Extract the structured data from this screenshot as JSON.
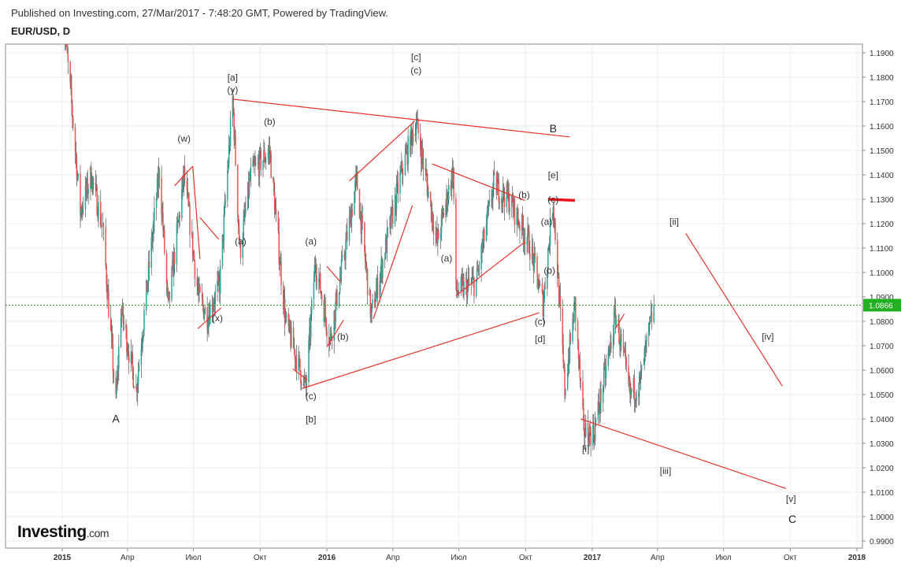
{
  "header": {
    "published": "Published on Investing.com, 27/Mar/2017 - 7:48:20 GMT, Powered by TradingView.",
    "symbol": "EUR/USD, D"
  },
  "logo": {
    "name": "Investing",
    "suffix": ".com"
  },
  "colors": {
    "up": "#26a69a",
    "down": "#ef5350",
    "trendline": "#e8332b",
    "price_line": "#22b022",
    "wick": "#555555"
  },
  "chart_data": {
    "type": "candlestick",
    "title": "EUR/USD, D",
    "current_price": 1.0866,
    "current_price_label": "1.0866",
    "y_ticks": [
      "1.1900",
      "1.1800",
      "1.1700",
      "1.1600",
      "1.1500",
      "1.1400",
      "1.1300",
      "1.1200",
      "1.1100",
      "1.1000",
      "1.0900",
      "1.0800",
      "1.0700",
      "1.0600",
      "1.0500",
      "1.0400",
      "1.0300",
      "1.0200",
      "1.0100",
      "1.0000",
      "0.9900"
    ],
    "ylim": [
      0.986,
      1.1925
    ],
    "x_ticks": [
      {
        "label": "2015",
        "date": "2015-01-01",
        "bold": true
      },
      {
        "label": "Апр",
        "date": "2015-04-01",
        "bold": false
      },
      {
        "label": "Июл",
        "date": "2015-07-01",
        "bold": false
      },
      {
        "label": "Окт",
        "date": "2015-10-01",
        "bold": false
      },
      {
        "label": "2016",
        "date": "2016-01-01",
        "bold": true
      },
      {
        "label": "Апр",
        "date": "2016-04-01",
        "bold": false
      },
      {
        "label": "Июл",
        "date": "2016-07-01",
        "bold": false
      },
      {
        "label": "Окт",
        "date": "2016-10-01",
        "bold": false
      },
      {
        "label": "2017",
        "date": "2017-01-01",
        "bold": true
      },
      {
        "label": "Апр",
        "date": "2017-04-01",
        "bold": false
      },
      {
        "label": "Июл",
        "date": "2017-07-01",
        "bold": false
      },
      {
        "label": "Окт",
        "date": "2017-10-01",
        "bold": false
      },
      {
        "label": "2018",
        "date": "2018-01-01",
        "bold": true
      }
    ],
    "grid": true,
    "price_path": [
      {
        "date": "2015-01-01",
        "price": 1.21
      },
      {
        "date": "2015-01-15",
        "price": 1.165
      },
      {
        "date": "2015-01-26",
        "price": 1.125
      },
      {
        "date": "2015-02-10",
        "price": 1.14
      },
      {
        "date": "2015-02-26",
        "price": 1.118
      },
      {
        "date": "2015-03-16",
        "price": 1.046
      },
      {
        "date": "2015-03-23",
        "price": 1.085
      },
      {
        "date": "2015-04-13",
        "price": 1.052
      },
      {
        "date": "2015-05-15",
        "price": 1.142
      },
      {
        "date": "2015-05-27",
        "price": 1.085
      },
      {
        "date": "2015-06-18",
        "price": 1.14
      },
      {
        "date": "2015-07-08",
        "price": 1.09
      },
      {
        "date": "2015-07-20",
        "price": 1.082
      },
      {
        "date": "2015-08-06",
        "price": 1.095
      },
      {
        "date": "2015-08-24",
        "price": 1.171
      },
      {
        "date": "2015-09-03",
        "price": 1.108
      },
      {
        "date": "2015-09-18",
        "price": 1.14
      },
      {
        "date": "2015-10-14",
        "price": 1.15
      },
      {
        "date": "2015-11-05",
        "price": 1.08
      },
      {
        "date": "2015-12-03",
        "price": 1.052
      },
      {
        "date": "2015-12-16",
        "price": 1.105
      },
      {
        "date": "2016-01-05",
        "price": 1.072
      },
      {
        "date": "2016-02-11",
        "price": 1.138
      },
      {
        "date": "2016-03-02",
        "price": 1.082
      },
      {
        "date": "2016-04-12",
        "price": 1.14
      },
      {
        "date": "2016-05-03",
        "price": 1.162
      },
      {
        "date": "2016-06-01",
        "price": 1.112
      },
      {
        "date": "2016-06-23",
        "price": 1.142
      },
      {
        "date": "2016-06-27",
        "price": 1.092
      },
      {
        "date": "2016-07-25",
        "price": 1.096
      },
      {
        "date": "2016-08-18",
        "price": 1.136
      },
      {
        "date": "2016-09-08",
        "price": 1.13
      },
      {
        "date": "2016-10-06",
        "price": 1.112
      },
      {
        "date": "2016-10-25",
        "price": 1.087
      },
      {
        "date": "2016-11-08",
        "price": 1.13
      },
      {
        "date": "2016-11-24",
        "price": 1.052
      },
      {
        "date": "2016-12-08",
        "price": 1.087
      },
      {
        "date": "2016-12-20",
        "price": 1.035
      },
      {
        "date": "2017-01-03",
        "price": 1.034
      },
      {
        "date": "2017-01-26",
        "price": 1.07
      },
      {
        "date": "2017-02-02",
        "price": 1.083
      },
      {
        "date": "2017-02-22",
        "price": 1.05
      },
      {
        "date": "2017-03-08",
        "price": 1.055
      },
      {
        "date": "2017-03-27",
        "price": 1.0866
      }
    ],
    "trendlines": [
      {
        "from": {
          "date": "2015-08-24",
          "price": 1.171
        },
        "to": {
          "date": "2016-12-01",
          "price": 1.1555
        }
      },
      {
        "from": {
          "date": "2015-11-28",
          "price": 1.0525
        },
        "to": {
          "date": "2016-10-20",
          "price": 1.0835
        }
      },
      {
        "from": {
          "date": "2016-02-01",
          "price": 1.1375
        },
        "to": {
          "date": "2016-05-01",
          "price": 1.162
        }
      },
      {
        "from": {
          "date": "2016-03-05",
          "price": 1.081
        },
        "to": {
          "date": "2016-04-28",
          "price": 1.1275
        }
      },
      {
        "from": {
          "date": "2016-05-25",
          "price": 1.1445
        },
        "to": {
          "date": "2016-09-30",
          "price": 1.1295
        }
      },
      {
        "from": {
          "date": "2016-06-27",
          "price": 1.0905
        },
        "to": {
          "date": "2016-09-30",
          "price": 1.1125
        }
      },
      {
        "from": {
          "date": "2015-06-05",
          "price": 1.1355
        },
        "to": {
          "date": "2015-06-30",
          "price": 1.1435
        }
      },
      {
        "from": {
          "date": "2015-07-10",
          "price": 1.1225
        },
        "to": {
          "date": "2015-08-05",
          "price": 1.1135
        }
      },
      {
        "from": {
          "date": "2015-06-30",
          "price": 1.1435
        },
        "to": {
          "date": "2015-07-10",
          "price": 1.1055
        }
      },
      {
        "from": {
          "date": "2015-07-07",
          "price": 1.077
        },
        "to": {
          "date": "2015-08-08",
          "price": 1.0855
        }
      },
      {
        "from": {
          "date": "2015-11-15",
          "price": 1.0605
        },
        "to": {
          "date": "2015-12-05",
          "price": 1.056
        }
      },
      {
        "from": {
          "date": "2016-01-01",
          "price": 1.1025
        },
        "to": {
          "date": "2016-01-20",
          "price": 1.096
        }
      },
      {
        "from": {
          "date": "2016-01-01",
          "price": 1.0695
        },
        "to": {
          "date": "2016-01-24",
          "price": 1.0805
        }
      },
      {
        "from": {
          "date": "2016-12-16",
          "price": 1.04
        },
        "to": {
          "date": "2017-09-25",
          "price": 1.0115
        }
      },
      {
        "from": {
          "date": "2017-05-10",
          "price": 1.116
        },
        "to": {
          "date": "2017-09-20",
          "price": 1.0535
        }
      },
      {
        "from": {
          "date": "2017-02-02",
          "price": 1.077
        },
        "to": {
          "date": "2017-02-14",
          "price": 1.083
        }
      }
    ],
    "marker_line": {
      "from": {
        "date": "2016-11-01",
        "price": 1.13
      },
      "to": {
        "date": "2016-12-08",
        "price": 1.1295
      }
    },
    "wave_labels": [
      {
        "text": "[a]",
        "date": "2015-08-24",
        "price": 1.1785
      },
      {
        "text": "(y)",
        "date": "2015-08-24",
        "price": 1.1735
      },
      {
        "text": "(w)",
        "date": "2015-06-18",
        "price": 1.1535
      },
      {
        "text": "(b)",
        "date": "2015-10-14",
        "price": 1.1605
      },
      {
        "text": "(a)",
        "date": "2015-09-04",
        "price": 1.1115
      },
      {
        "text": "(x)",
        "date": "2015-08-03",
        "price": 1.08
      },
      {
        "text": "A",
        "date": "2015-03-16",
        "price": 1.0385
      },
      {
        "text": "(a)",
        "date": "2015-12-10",
        "price": 1.1115
      },
      {
        "text": "(b)",
        "date": "2016-01-23",
        "price": 1.0725
      },
      {
        "text": "(c)",
        "date": "2015-12-10",
        "price": 1.048
      },
      {
        "text": "[b]",
        "date": "2015-12-10",
        "price": 1.0385
      },
      {
        "text": "[c]",
        "date": "2016-05-03",
        "price": 1.187
      },
      {
        "text": "(c)",
        "date": "2016-05-03",
        "price": 1.1815
      },
      {
        "text": "(a)",
        "date": "2016-06-14",
        "price": 1.1045
      },
      {
        "text": "(b)",
        "date": "2016-09-29",
        "price": 1.1305
      },
      {
        "text": "B",
        "date": "2016-11-08",
        "price": 1.1575
      },
      {
        "text": "[e]",
        "date": "2016-11-08",
        "price": 1.1385
      },
      {
        "text": "(c)",
        "date": "2016-11-08",
        "price": 1.1285
      },
      {
        "text": "(a)",
        "date": "2016-10-30",
        "price": 1.1195
      },
      {
        "text": "(b)",
        "date": "2016-11-03",
        "price": 1.0995
      },
      {
        "text": "(c)",
        "date": "2016-10-21",
        "price": 1.0785
      },
      {
        "text": "[d]",
        "date": "2016-10-21",
        "price": 1.0715
      },
      {
        "text": "[i]",
        "date": "2016-12-23",
        "price": 1.0265
      },
      {
        "text": "[ii]",
        "date": "2017-04-24",
        "price": 1.1195
      },
      {
        "text": "[iii]",
        "date": "2017-04-12",
        "price": 1.0175
      },
      {
        "text": "[iv]",
        "date": "2017-08-31",
        "price": 1.0725
      },
      {
        "text": "[v]",
        "date": "2017-10-02",
        "price": 1.006
      },
      {
        "text": "C",
        "date": "2017-10-04",
        "price": 0.9975
      }
    ]
  }
}
